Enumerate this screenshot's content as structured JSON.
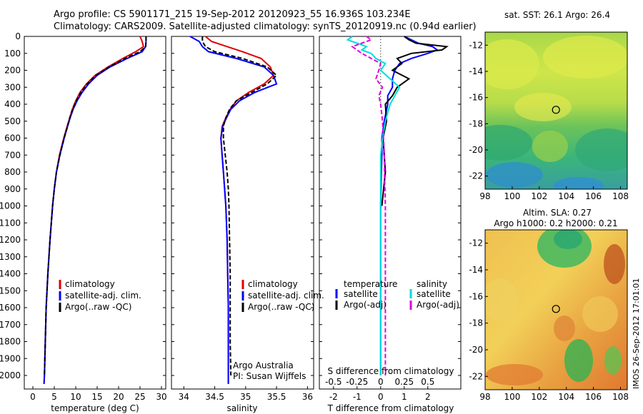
{
  "header": {
    "line1": "Argo profile: CS 5901171_215 19-Sep-2012 20120923_55 16.936S 103.234E",
    "line2": "Climatology: CARS2009. Satellite-adjusted climatology: synTS_20120919.nc (0.94d earlier)"
  },
  "depth_axis": {
    "ticks": [
      0,
      100,
      200,
      300,
      400,
      500,
      600,
      700,
      800,
      900,
      1000,
      1100,
      1200,
      1300,
      1400,
      1500,
      1600,
      1700,
      1800,
      1900,
      2000
    ],
    "range": [
      0,
      2080
    ]
  },
  "colors": {
    "climatology": "#e00000",
    "satellite": "#0000ff",
    "argo": "#000000",
    "sal_satellite": "#00dddd",
    "sal_argo": "#e000e0"
  },
  "chart_data": [
    {
      "type": "line",
      "panel": "temperature",
      "xlabel": "temperature (deg C)",
      "xlim": [
        -2,
        31
      ],
      "xticks": [
        0,
        5,
        10,
        15,
        20,
        25,
        30
      ],
      "legend": [
        "climatology",
        "satellite-adj. clim.",
        "Argo(..raw -QC)"
      ],
      "series": [
        {
          "name": "climatology",
          "depth": [
            0,
            30,
            60,
            90,
            130,
            180,
            230,
            280,
            330,
            380,
            430,
            480,
            530,
            600,
            700,
            800,
            900,
            1000,
            1200,
            1400,
            1600,
            1800,
            2000,
            2050
          ],
          "values": [
            25,
            25.5,
            25.8,
            24,
            21,
            17.5,
            14.5,
            12.5,
            11,
            10,
            9.2,
            8.6,
            8,
            7.2,
            6.2,
            5.5,
            5,
            4.6,
            4,
            3.5,
            3.1,
            2.9,
            2.7,
            2.6
          ]
        },
        {
          "name": "satellite-adj. clim.",
          "depth": [
            0,
            30,
            60,
            90,
            130,
            180,
            230,
            280,
            330,
            380,
            430,
            480,
            530,
            600,
            700,
            800,
            900,
            1000,
            1200,
            1400,
            1600,
            1800,
            2000,
            2050
          ],
          "values": [
            26.4,
            26.4,
            26.3,
            25.5,
            22,
            18,
            15,
            13,
            11.5,
            10.3,
            9.4,
            8.7,
            8.1,
            7.3,
            6.3,
            5.5,
            5,
            4.6,
            4,
            3.5,
            3.1,
            2.9,
            2.7,
            2.6
          ]
        },
        {
          "name": "Argo(..raw -QC)",
          "depth": [
            0,
            30,
            60,
            90,
            130,
            180,
            230,
            280,
            330,
            380,
            430,
            480,
            530,
            600,
            700,
            800,
            900,
            1000,
            1200,
            1400,
            1600,
            1800,
            2000
          ],
          "values": [
            26.4,
            26.4,
            26.3,
            25,
            21.5,
            17.8,
            14.7,
            12.7,
            11.2,
            10.1,
            9.3,
            8.6,
            8.1,
            7.3,
            6.3,
            5.5,
            5,
            4.6,
            4,
            3.5,
            3.1,
            2.9,
            2.7
          ]
        }
      ]
    },
    {
      "type": "line",
      "panel": "salinity",
      "xlabel": "salinity",
      "xlim": [
        33.8,
        36.1
      ],
      "xticks": [
        34,
        34.5,
        35,
        35.5,
        36
      ],
      "legend": [
        "climatology",
        "satellite-adj. clim.",
        "Argo(..raw -QC)"
      ],
      "annotations": [
        "Argo Australia",
        "PI: Susan Wijffels"
      ],
      "series": [
        {
          "name": "climatology",
          "depth": [
            0,
            30,
            60,
            90,
            130,
            180,
            230,
            280,
            330,
            380,
            430,
            480,
            530,
            600,
            700,
            800,
            900,
            1000,
            1200,
            1400,
            1600,
            1800,
            2000,
            2050
          ],
          "values": [
            34.35,
            34.45,
            34.7,
            34.95,
            35.25,
            35.4,
            35.45,
            35.3,
            35.05,
            34.85,
            34.75,
            34.68,
            34.62,
            34.6,
            34.62,
            34.64,
            34.66,
            34.68,
            34.7,
            34.71,
            34.72,
            34.72,
            34.72,
            34.72
          ]
        },
        {
          "name": "satellite-adj. clim.",
          "depth": [
            0,
            30,
            60,
            90,
            130,
            180,
            230,
            280,
            330,
            380,
            430,
            480,
            530,
            600,
            700,
            800,
            900,
            1000,
            1200,
            1400,
            1600,
            1800,
            2000,
            2050
          ],
          "values": [
            34.1,
            34.25,
            34.3,
            34.4,
            34.85,
            35.3,
            35.45,
            35.5,
            35.15,
            34.9,
            34.76,
            34.69,
            34.63,
            34.6,
            34.62,
            34.64,
            34.66,
            34.68,
            34.7,
            34.71,
            34.72,
            34.72,
            34.72,
            34.72
          ]
        },
        {
          "name": "Argo(..raw -QC)",
          "depth": [
            0,
            30,
            60,
            90,
            130,
            180,
            230,
            280,
            330,
            380,
            430,
            480,
            530,
            600,
            700,
            800,
            900,
            1000,
            1200,
            1400,
            1600,
            1800,
            2000
          ],
          "values": [
            34.3,
            34.3,
            34.35,
            34.5,
            34.95,
            35.35,
            35.5,
            35.35,
            35.1,
            34.85,
            34.74,
            34.68,
            34.64,
            34.64,
            34.67,
            34.7,
            34.72,
            34.73,
            34.74,
            34.75,
            34.75,
            34.75,
            34.76
          ]
        }
      ]
    },
    {
      "type": "line",
      "panel": "difference",
      "xlabel": "T difference from climatology",
      "xlim": [
        -2.6,
        3.4
      ],
      "xticks": [
        -2,
        -1,
        0,
        1,
        2
      ],
      "x2label": "S difference from climatology",
      "x2ticks": [
        -0.5,
        -0.25,
        0,
        0.25,
        0.5
      ],
      "legend_temperature": [
        "temperature",
        "satellite",
        "Argo(-adj)"
      ],
      "legend_salinity": [
        "salinity",
        "satellite",
        "Argo(-adj)"
      ],
      "series": [
        {
          "name": "temperature satellite",
          "depth": [
            0,
            20,
            40,
            60,
            80,
            100,
            130,
            160,
            200,
            250,
            300,
            350,
            400,
            500,
            600,
            700,
            800,
            1000,
            1200,
            1500,
            2000
          ],
          "values": [
            1.0,
            1.3,
            1.6,
            2.2,
            2.4,
            2.0,
            1.3,
            0.8,
            0.6,
            0.5,
            0.5,
            0.3,
            0.3,
            0.15,
            0.05,
            0.05,
            0.03,
            0,
            0,
            0,
            0
          ]
        },
        {
          "name": "temperature Argo(-adj)",
          "depth": [
            0,
            20,
            40,
            60,
            80,
            100,
            130,
            160,
            200,
            250,
            300,
            350,
            400,
            500,
            600,
            700,
            800,
            1000
          ],
          "values": [
            1.0,
            1.2,
            1.5,
            2.8,
            2.6,
            1.3,
            0.7,
            0.9,
            0.5,
            1.2,
            0.7,
            0.5,
            0.2,
            0.25,
            0.1,
            0.15,
            0.2,
            0.05
          ]
        },
        {
          "name": "salinity satellite",
          "depth": [
            0,
            20,
            40,
            60,
            80,
            100,
            130,
            160,
            200,
            250,
            300,
            350,
            400,
            500,
            600,
            700,
            800,
            1000,
            1200,
            1500,
            2000
          ],
          "values": [
            -0.3,
            -0.35,
            -0.25,
            -0.15,
            -0.2,
            -0.1,
            -0.05,
            0.05,
            0.0,
            0.1,
            0.2,
            0.15,
            0.1,
            0.05,
            0.02,
            0.0,
            0.0,
            0.0,
            0.0,
            0.0,
            0.0
          ]
        },
        {
          "name": "salinity Argo(-adj)",
          "depth": [
            0,
            20,
            40,
            60,
            80,
            100,
            130,
            160,
            200,
            250,
            300,
            350,
            400,
            500,
            600,
            700,
            800,
            1000,
            1200,
            1500,
            2000
          ],
          "values": [
            -0.15,
            -0.1,
            -0.2,
            -0.3,
            -0.25,
            -0.2,
            -0.1,
            0.0,
            -0.02,
            -0.05,
            0.02,
            -0.02,
            0.0,
            0.02,
            0.03,
            0.04,
            0.04,
            0.05,
            0.05,
            0.05,
            0.05
          ]
        }
      ]
    },
    {
      "type": "heatmap",
      "panel": "sst_map",
      "title": "sat. SST: 26.1  Argo: 26.4",
      "xlim": [
        98,
        108.5
      ],
      "ylim": [
        -23,
        -11
      ],
      "xticks": [
        98,
        100,
        102,
        104,
        106,
        108
      ],
      "yticks": [
        -12,
        -14,
        -16,
        -18,
        -20,
        -22
      ],
      "marker": {
        "lon": 103.234,
        "lat": -16.936
      }
    },
    {
      "type": "heatmap",
      "panel": "sla_map",
      "title": "Altim. SLA: 0.27",
      "subtitle": "Argo h1000: 0.2  h2000: 0.21",
      "xlim": [
        98,
        108.5
      ],
      "ylim": [
        -23,
        -11
      ],
      "xticks": [
        98,
        100,
        102,
        104,
        106,
        108
      ],
      "yticks": [
        -12,
        -14,
        -16,
        -18,
        -20,
        -22
      ],
      "marker": {
        "lon": 103.234,
        "lat": -16.936
      }
    }
  ],
  "footer": {
    "stamp": "IMOS 26-Sep-2012 17:01:01"
  }
}
